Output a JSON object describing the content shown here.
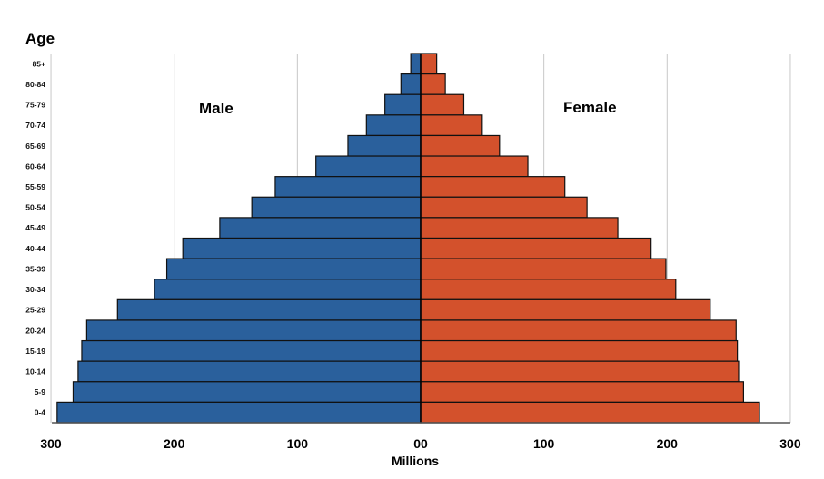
{
  "chart_data": {
    "type": "bar",
    "orientation": "horizontal",
    "subtype": "population-pyramid",
    "title": "",
    "ylabel": "Age",
    "xlabel": "Millions",
    "categories": [
      "85+",
      "80-84",
      "75-79",
      "70-74",
      "65-69",
      "60-64",
      "55-59",
      "50-54",
      "45-49",
      "40-44",
      "35-39",
      "30-34",
      "25-29",
      "20-24",
      "15-19",
      "10-14",
      "5-9",
      "0-4"
    ],
    "series": [
      {
        "name": "Male",
        "color": "#2a609c",
        "values": [
          8,
          16,
          29,
          44,
          59,
          85,
          118,
          137,
          163,
          193,
          206,
          216,
          246,
          271,
          275,
          278,
          282,
          295
        ]
      },
      {
        "name": "Female",
        "color": "#d3512c",
        "values": [
          13,
          20,
          35,
          50,
          64,
          87,
          117,
          135,
          160,
          187,
          199,
          207,
          235,
          256,
          257,
          258,
          262,
          275
        ]
      }
    ],
    "xlim": [
      -300,
      300
    ],
    "x_ticks": [
      {
        "value": -300,
        "label": "300"
      },
      {
        "value": -200,
        "label": "200"
      },
      {
        "value": -100,
        "label": "100"
      },
      {
        "value": 0,
        "label": "00"
      },
      {
        "value": 100,
        "label": "100"
      },
      {
        "value": 200,
        "label": "200"
      },
      {
        "value": 300,
        "label": "300"
      }
    ],
    "grid": true,
    "annotations": {
      "left": "Male",
      "right": "Female"
    }
  }
}
